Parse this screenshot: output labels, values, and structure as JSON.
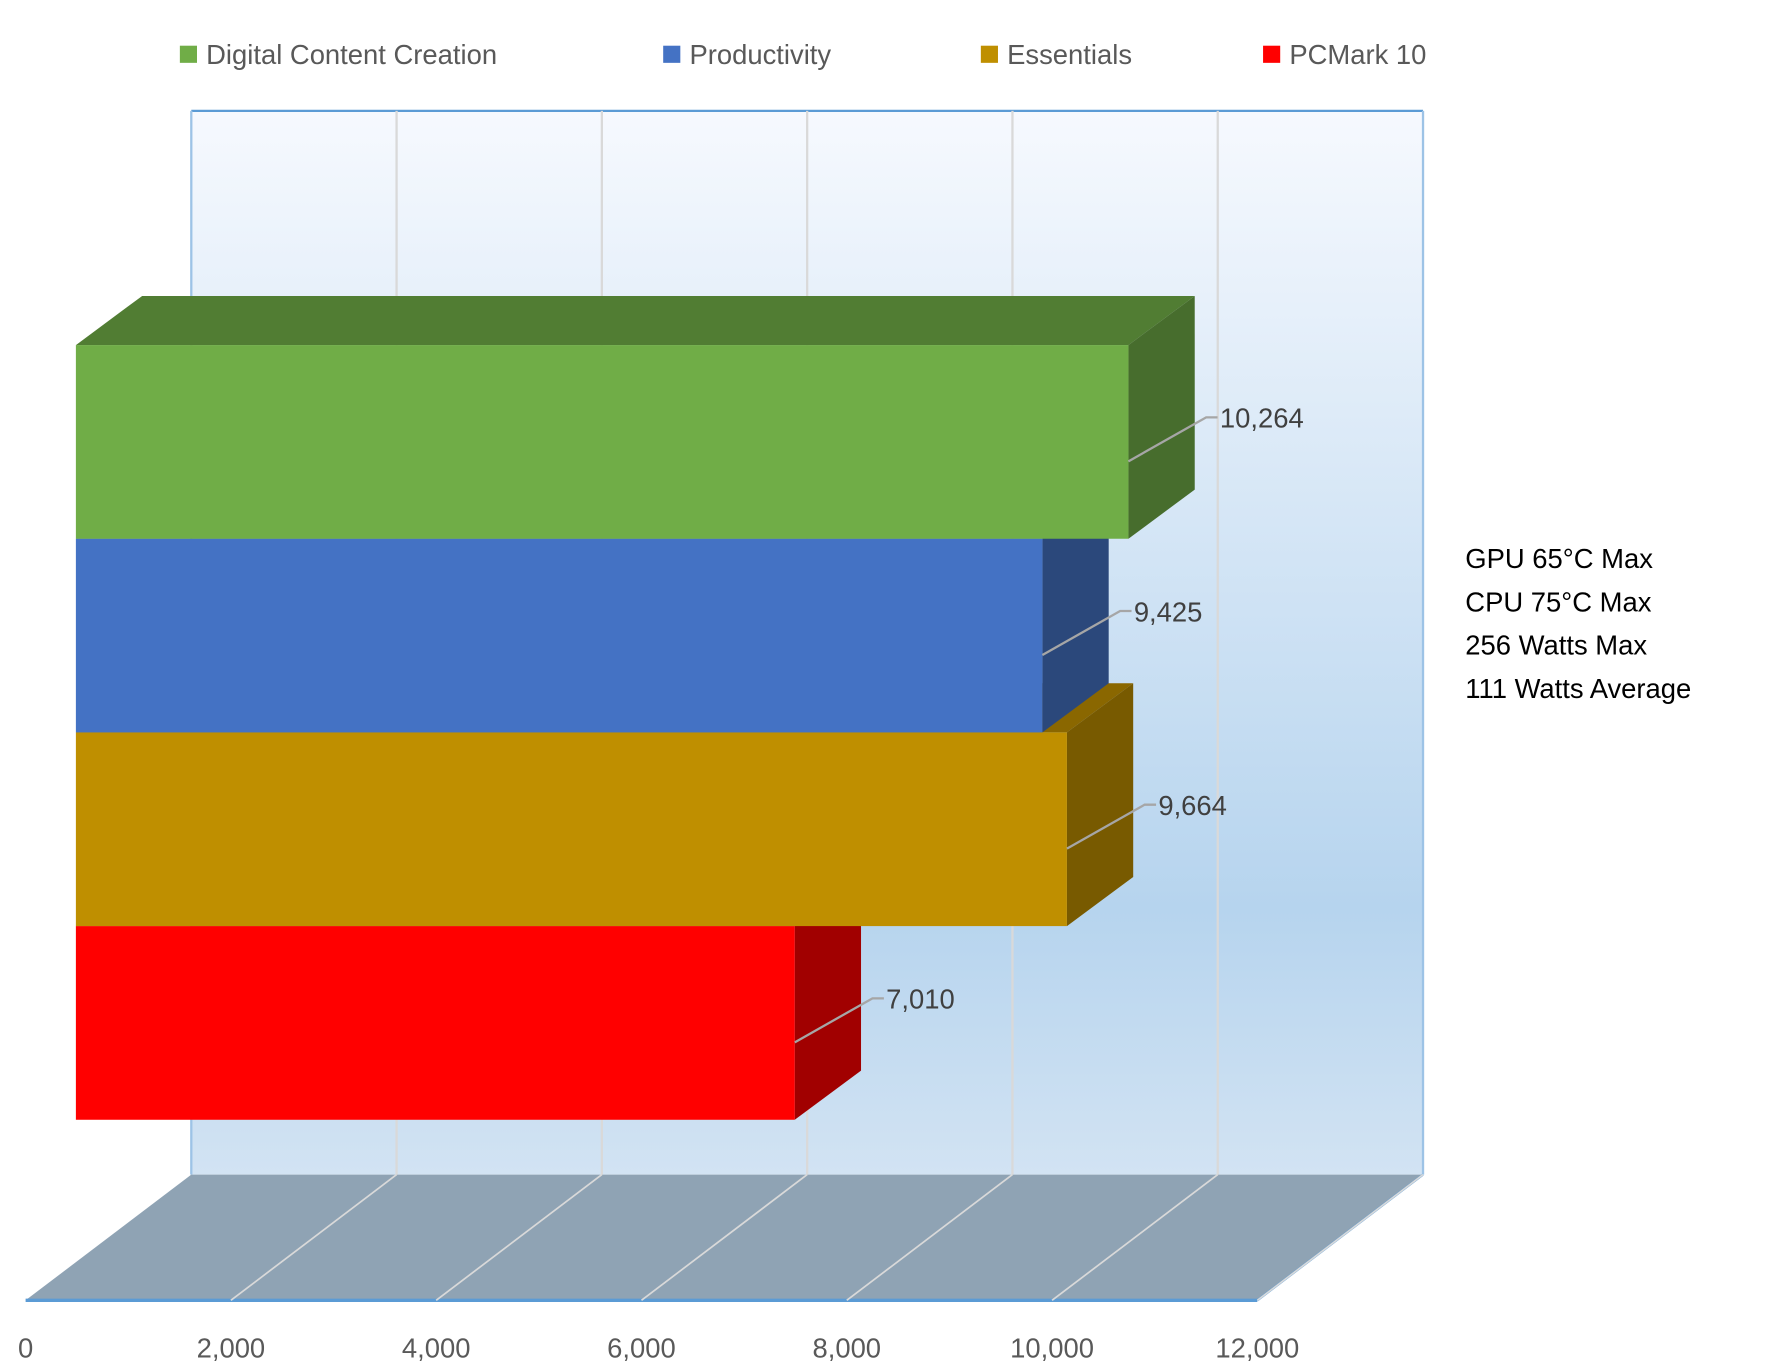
{
  "chart_data": {
    "type": "bar",
    "orientation": "horizontal",
    "style": "3d",
    "categories": [
      "Digital Content Creation",
      "Productivity",
      "Essentials",
      "PCMark 10"
    ],
    "values": [
      10264,
      9425,
      9664,
      7010
    ],
    "data_labels": [
      "10,264",
      "9,425",
      "9,664",
      "7,010"
    ],
    "series": [
      {
        "name": "Digital Content Creation",
        "value": 10264,
        "color": "#70AD47"
      },
      {
        "name": "Productivity",
        "value": 9425,
        "color": "#4472C4"
      },
      {
        "name": "Essentials",
        "value": 9664,
        "color": "#BF8F00"
      },
      {
        "name": "PCMark 10",
        "value": 7010,
        "color": "#FF0000"
      }
    ],
    "xlim": [
      0,
      12000
    ],
    "x_ticks": [
      "0",
      "2,000",
      "4,000",
      "6,000",
      "8,000",
      "10,000",
      "12,000"
    ],
    "grid": true,
    "legend_position": "top",
    "title": "",
    "xlabel": "",
    "ylabel": ""
  },
  "annotation": {
    "lines": [
      "GPU 65°C Max",
      "CPU 75°C Max",
      "256 Watts Max",
      "111 Watts Average"
    ]
  }
}
